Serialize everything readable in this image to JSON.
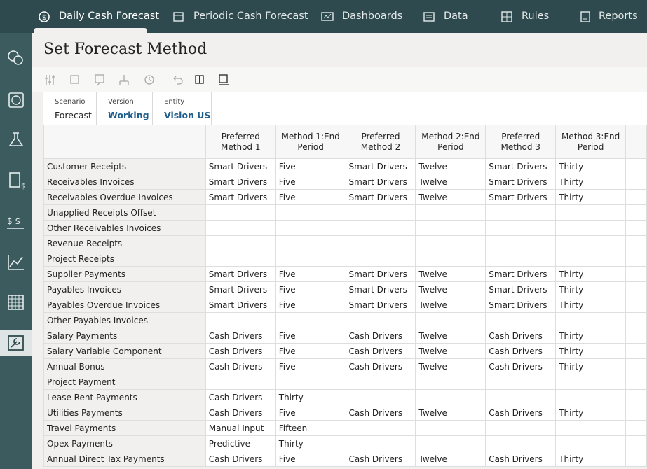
{
  "nav": {
    "tabs": [
      "Daily Cash Forecast",
      "Periodic Cash Forecast",
      "Dashboards",
      "Data",
      "Rules",
      "Reports"
    ]
  },
  "page": {
    "title": "Set Forecast Method"
  },
  "pov": [
    {
      "label": "Scenario",
      "value": "Forecast"
    },
    {
      "label": "Version",
      "value": "Working"
    },
    {
      "label": "Entity",
      "value": "Vision US"
    }
  ],
  "table": {
    "columns": [
      "Preferred Method 1",
      "Method 1:End Period",
      "Preferred Method 2",
      "Method 2:End Period",
      "Preferred Method 3",
      "Method 3:End Period"
    ],
    "rows": [
      {
        "label": "Customer Receipts",
        "cells": [
          "Smart Drivers",
          "Five",
          "Smart Drivers",
          "Twelve",
          "Smart Drivers",
          "Thirty"
        ]
      },
      {
        "label": "Receivables Invoices",
        "cells": [
          "Smart Drivers",
          "Five",
          "Smart Drivers",
          "Twelve",
          "Smart Drivers",
          "Thirty"
        ]
      },
      {
        "label": "Receivables Overdue Invoices",
        "cells": [
          "Smart Drivers",
          "Five",
          "Smart Drivers",
          "Twelve",
          "Smart Drivers",
          "Thirty"
        ]
      },
      {
        "label": "Unapplied Receipts Offset",
        "cells": [
          null,
          null,
          null,
          null,
          null,
          null
        ]
      },
      {
        "label": "Other Receivables Invoices",
        "cells": [
          null,
          null,
          null,
          null,
          null,
          null
        ]
      },
      {
        "label": "Revenue Receipts",
        "cells": [
          null,
          null,
          null,
          null,
          null,
          null
        ]
      },
      {
        "label": "Project Receipts",
        "cells": [
          null,
          null,
          null,
          null,
          null,
          null
        ]
      },
      {
        "label": "Supplier Payments",
        "cells": [
          "Smart Drivers",
          "Five",
          "Smart Drivers",
          "Twelve",
          "Smart Drivers",
          "Thirty"
        ]
      },
      {
        "label": "Payables Invoices",
        "cells": [
          "Smart Drivers",
          "Five",
          "Smart Drivers",
          "Twelve",
          "Smart Drivers",
          "Thirty"
        ]
      },
      {
        "label": "Payables Overdue Invoices",
        "cells": [
          "Smart Drivers",
          "Five",
          "Smart Drivers",
          "Twelve",
          "Smart Drivers",
          "Thirty"
        ]
      },
      {
        "label": "Other Payables Invoices",
        "cells": [
          null,
          null,
          null,
          null,
          null,
          null
        ]
      },
      {
        "label": "Salary Payments",
        "cells": [
          "Cash Drivers",
          "Five",
          "Cash Drivers",
          "Twelve",
          "Cash Drivers",
          "Thirty"
        ]
      },
      {
        "label": "Salary Variable Component",
        "cells": [
          "Cash Drivers",
          "Five",
          "Cash Drivers",
          "Twelve",
          "Cash Drivers",
          "Thirty"
        ]
      },
      {
        "label": "Annual Bonus",
        "cells": [
          "Cash Drivers",
          "Five",
          "Cash Drivers",
          "Twelve",
          "Cash Drivers",
          "Thirty"
        ]
      },
      {
        "label": "Project Payment",
        "cells": [
          null,
          null,
          null,
          null,
          null,
          null
        ]
      },
      {
        "label": "Lease Rent Payments",
        "cells": [
          "Cash Drivers",
          "Thirty",
          null,
          null,
          null,
          null
        ]
      },
      {
        "label": "Utilities Payments",
        "cells": [
          "Cash Drivers",
          "Five",
          "Cash Drivers",
          "Twelve",
          "Cash Drivers",
          "Thirty"
        ]
      },
      {
        "label": "Travel Payments",
        "cells": [
          "Manual Input",
          "Fifteen",
          null,
          null,
          null,
          null
        ]
      },
      {
        "label": "Opex Payments",
        "cells": [
          "Predictive",
          "Thirty",
          null,
          null,
          null,
          null
        ]
      },
      {
        "label": "Annual Direct Tax Payments",
        "cells": [
          "Cash Drivers",
          "Five",
          "Cash Drivers",
          "Twelve",
          "Cash Drivers",
          "Thirty"
        ]
      }
    ]
  }
}
